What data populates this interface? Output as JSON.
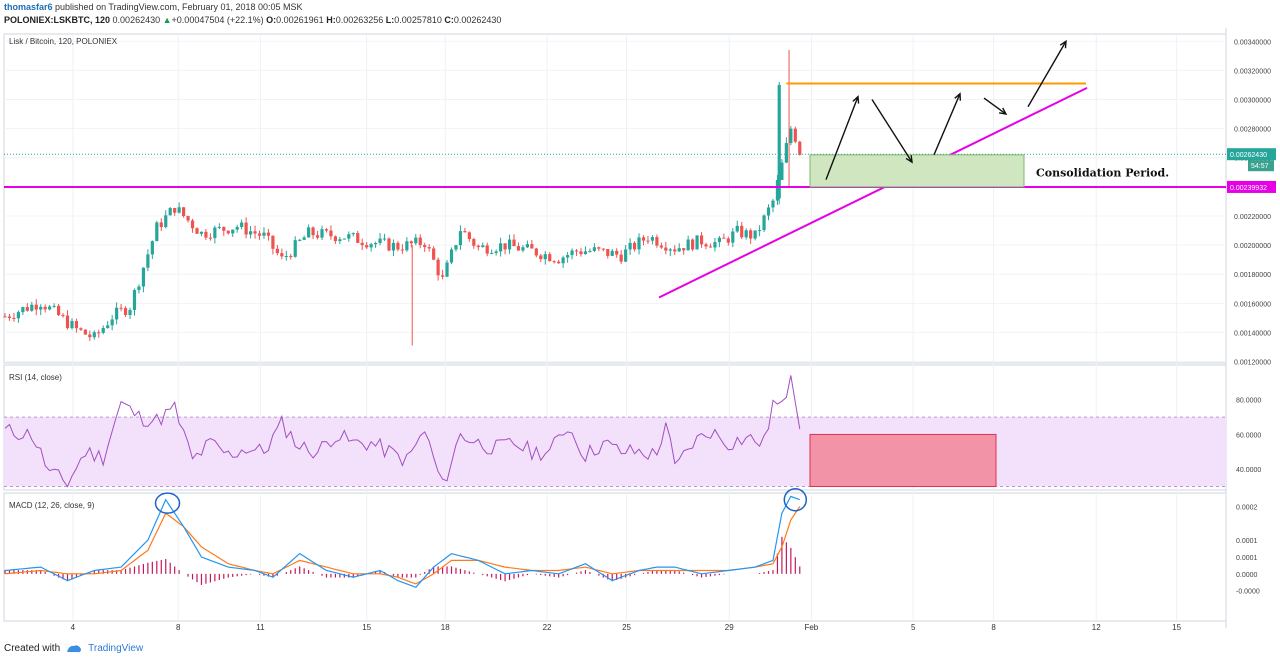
{
  "header": {
    "user": "thomasfar6",
    "published": "published on TradingView.com, February 01, 2018 00:05 MSK",
    "symbol": "POLONIEX:LSKBTC, 120",
    "last": "0.00262430",
    "change_arrow": "▲",
    "change": "+0.00047504 (+22.1%)",
    "o_label": "O:",
    "o_value": "0.00261961",
    "h_label": "H:",
    "h_value": "0.00263256",
    "l_label": "L:",
    "l_value": "0.00257810",
    "c_label": "C:",
    "c_value": "0.00262430"
  },
  "footer": {
    "created_with": "Created with",
    "brand": "TradingView",
    "logo_icon": "tradingview-logo-icon"
  },
  "colors": {
    "up": "#26a69a",
    "down": "#ef5350",
    "support": "#e600e6",
    "resistance": "#ff9800",
    "rsi": "#a050c0",
    "macd": "#2196f3",
    "signal": "#ff7a1a",
    "hist": "#c2185b"
  },
  "chart_data": [
    {
      "type": "candlestick",
      "title": "Lisk / Bitcoin, 120, POLONIEX",
      "ylim": [
        0.00119,
        0.00345
      ],
      "y_ticks": [
        "0.00340000",
        "0.00320000",
        "0.00300000",
        "0.00280000",
        "0.00260000",
        "0.00220000",
        "0.00200000",
        "0.00180000",
        "0.00160000",
        "0.00140000",
        "0.00120000"
      ],
      "x_ticks": [
        "4",
        "8",
        "11",
        "15",
        "18",
        "22",
        "25",
        "29",
        "Feb",
        "5",
        "8",
        "12",
        "15"
      ],
      "last_price_label": "0.00262430",
      "countdown_label": "54:57",
      "support_label": "0.00239932",
      "support_level": 0.00239932,
      "resistance_level": 0.00311,
      "annotation": "Consolidation Period.",
      "close_path": [
        [
          0,
          0.00151
        ],
        [
          4,
          0.00161
        ],
        [
          8,
          0.00142
        ],
        [
          10,
          0.00136
        ],
        [
          12,
          0.00151
        ],
        [
          14,
          0.00158
        ],
        [
          17,
          0.00212
        ],
        [
          19,
          0.00226
        ],
        [
          22,
          0.00208
        ],
        [
          26,
          0.00213
        ],
        [
          29,
          0.00206
        ],
        [
          31,
          0.0019
        ],
        [
          34,
          0.00208
        ],
        [
          38,
          0.00206
        ],
        [
          41,
          0.00202
        ],
        [
          44,
          0.00199
        ],
        [
          47,
          0.00202
        ],
        [
          49,
          0.00176
        ],
        [
          51,
          0.00211
        ],
        [
          53,
          0.00198
        ],
        [
          56,
          0.002
        ],
        [
          59,
          0.00196
        ],
        [
          62,
          0.00191
        ],
        [
          64,
          0.00196
        ],
        [
          66,
          0.00196
        ],
        [
          69,
          0.00193
        ],
        [
          72,
          0.00206
        ],
        [
          75,
          0.00198
        ],
        [
          78,
          0.00203
        ],
        [
          80,
          0.00201
        ],
        [
          82,
          0.00209
        ],
        [
          84,
          0.00206
        ],
        [
          86,
          0.0023
        ],
        [
          88,
          0.0028
        ],
        [
          89,
          0.00262
        ]
      ],
      "high": 0.00334,
      "low": 0.00131
    },
    {
      "type": "line",
      "title": "RSI (14, close)",
      "ylim": [
        28,
        100
      ],
      "bands": [
        30,
        70
      ],
      "y_ticks": [
        "80.0000",
        "60.0000",
        "40.0000"
      ],
      "path": [
        [
          0,
          62
        ],
        [
          3,
          60
        ],
        [
          5,
          38
        ],
        [
          7,
          32
        ],
        [
          9,
          50
        ],
        [
          11,
          47
        ],
        [
          13,
          78
        ],
        [
          15,
          70
        ],
        [
          17,
          68
        ],
        [
          19,
          75
        ],
        [
          21,
          45
        ],
        [
          23,
          55
        ],
        [
          25,
          48
        ],
        [
          27,
          52
        ],
        [
          29,
          50
        ],
        [
          31,
          66
        ],
        [
          33,
          53
        ],
        [
          35,
          50
        ],
        [
          37,
          60
        ],
        [
          39,
          55
        ],
        [
          41,
          55
        ],
        [
          43,
          50
        ],
        [
          45,
          45
        ],
        [
          47,
          62
        ],
        [
          49,
          30
        ],
        [
          51,
          60
        ],
        [
          53,
          55
        ],
        [
          55,
          52
        ],
        [
          57,
          55
        ],
        [
          59,
          50
        ],
        [
          61,
          50
        ],
        [
          63,
          65
        ],
        [
          65,
          48
        ],
        [
          67,
          55
        ],
        [
          69,
          50
        ],
        [
          71,
          50
        ],
        [
          73,
          48
        ],
        [
          74,
          68
        ],
        [
          75,
          40
        ],
        [
          77,
          55
        ],
        [
          79,
          62
        ],
        [
          81,
          55
        ],
        [
          83,
          58
        ],
        [
          85,
          55
        ],
        [
          86,
          78
        ],
        [
          87,
          75
        ],
        [
          88,
          94
        ],
        [
          89,
          63
        ]
      ]
    },
    {
      "type": "line",
      "title": "MACD (12, 26, close, 9)",
      "ylim": [
        -0.00014,
        0.00024
      ],
      "y_ticks": [
        "0.0002",
        "0.0001",
        "0.0001",
        "0.0000",
        "-0.0000"
      ],
      "macd_path": [
        [
          0,
          1e-05
        ],
        [
          4,
          2e-05
        ],
        [
          7,
          -2e-05
        ],
        [
          10,
          1e-05
        ],
        [
          13,
          2e-05
        ],
        [
          16,
          0.0001
        ],
        [
          18,
          0.00022
        ],
        [
          20,
          0.00014
        ],
        [
          22,
          5e-05
        ],
        [
          25,
          2e-05
        ],
        [
          28,
          1e-05
        ],
        [
          30,
          -1e-05
        ],
        [
          33,
          6e-05
        ],
        [
          36,
          1e-05
        ],
        [
          39,
          -1e-05
        ],
        [
          42,
          1e-05
        ],
        [
          44,
          -2e-05
        ],
        [
          46,
          -4e-05
        ],
        [
          48,
          2e-05
        ],
        [
          50,
          6e-05
        ],
        [
          53,
          4e-05
        ],
        [
          56,
          0.0
        ],
        [
          59,
          1e-05
        ],
        [
          62,
          0.0
        ],
        [
          65,
          3e-05
        ],
        [
          68,
          -2e-05
        ],
        [
          71,
          1e-05
        ],
        [
          73,
          2e-05
        ],
        [
          75,
          2e-05
        ],
        [
          78,
          0.0
        ],
        [
          81,
          1e-05
        ],
        [
          84,
          2e-05
        ],
        [
          86,
          4e-05
        ],
        [
          87,
          0.00018
        ],
        [
          88,
          0.00023
        ],
        [
          89,
          0.00022
        ]
      ],
      "signal_path": [
        [
          0,
          0.0
        ],
        [
          4,
          1e-05
        ],
        [
          7,
          0.0
        ],
        [
          10,
          0.0
        ],
        [
          13,
          1e-05
        ],
        [
          16,
          7e-05
        ],
        [
          18,
          0.00018
        ],
        [
          20,
          0.00014
        ],
        [
          22,
          8e-05
        ],
        [
          25,
          3e-05
        ],
        [
          28,
          1e-05
        ],
        [
          30,
          0.0
        ],
        [
          33,
          4e-05
        ],
        [
          36,
          2e-05
        ],
        [
          39,
          0.0
        ],
        [
          42,
          0.0
        ],
        [
          44,
          -1e-05
        ],
        [
          46,
          -3e-05
        ],
        [
          48,
          0.0
        ],
        [
          50,
          4e-05
        ],
        [
          53,
          4e-05
        ],
        [
          56,
          2e-05
        ],
        [
          59,
          1e-05
        ],
        [
          62,
          1e-05
        ],
        [
          65,
          2e-05
        ],
        [
          68,
          0.0
        ],
        [
          71,
          1e-05
        ],
        [
          73,
          1e-05
        ],
        [
          75,
          1e-05
        ],
        [
          78,
          1e-05
        ],
        [
          81,
          1e-05
        ],
        [
          84,
          2e-05
        ],
        [
          86,
          3e-05
        ],
        [
          87,
          8e-05
        ],
        [
          88,
          0.00016
        ],
        [
          89,
          0.0002
        ]
      ]
    }
  ]
}
